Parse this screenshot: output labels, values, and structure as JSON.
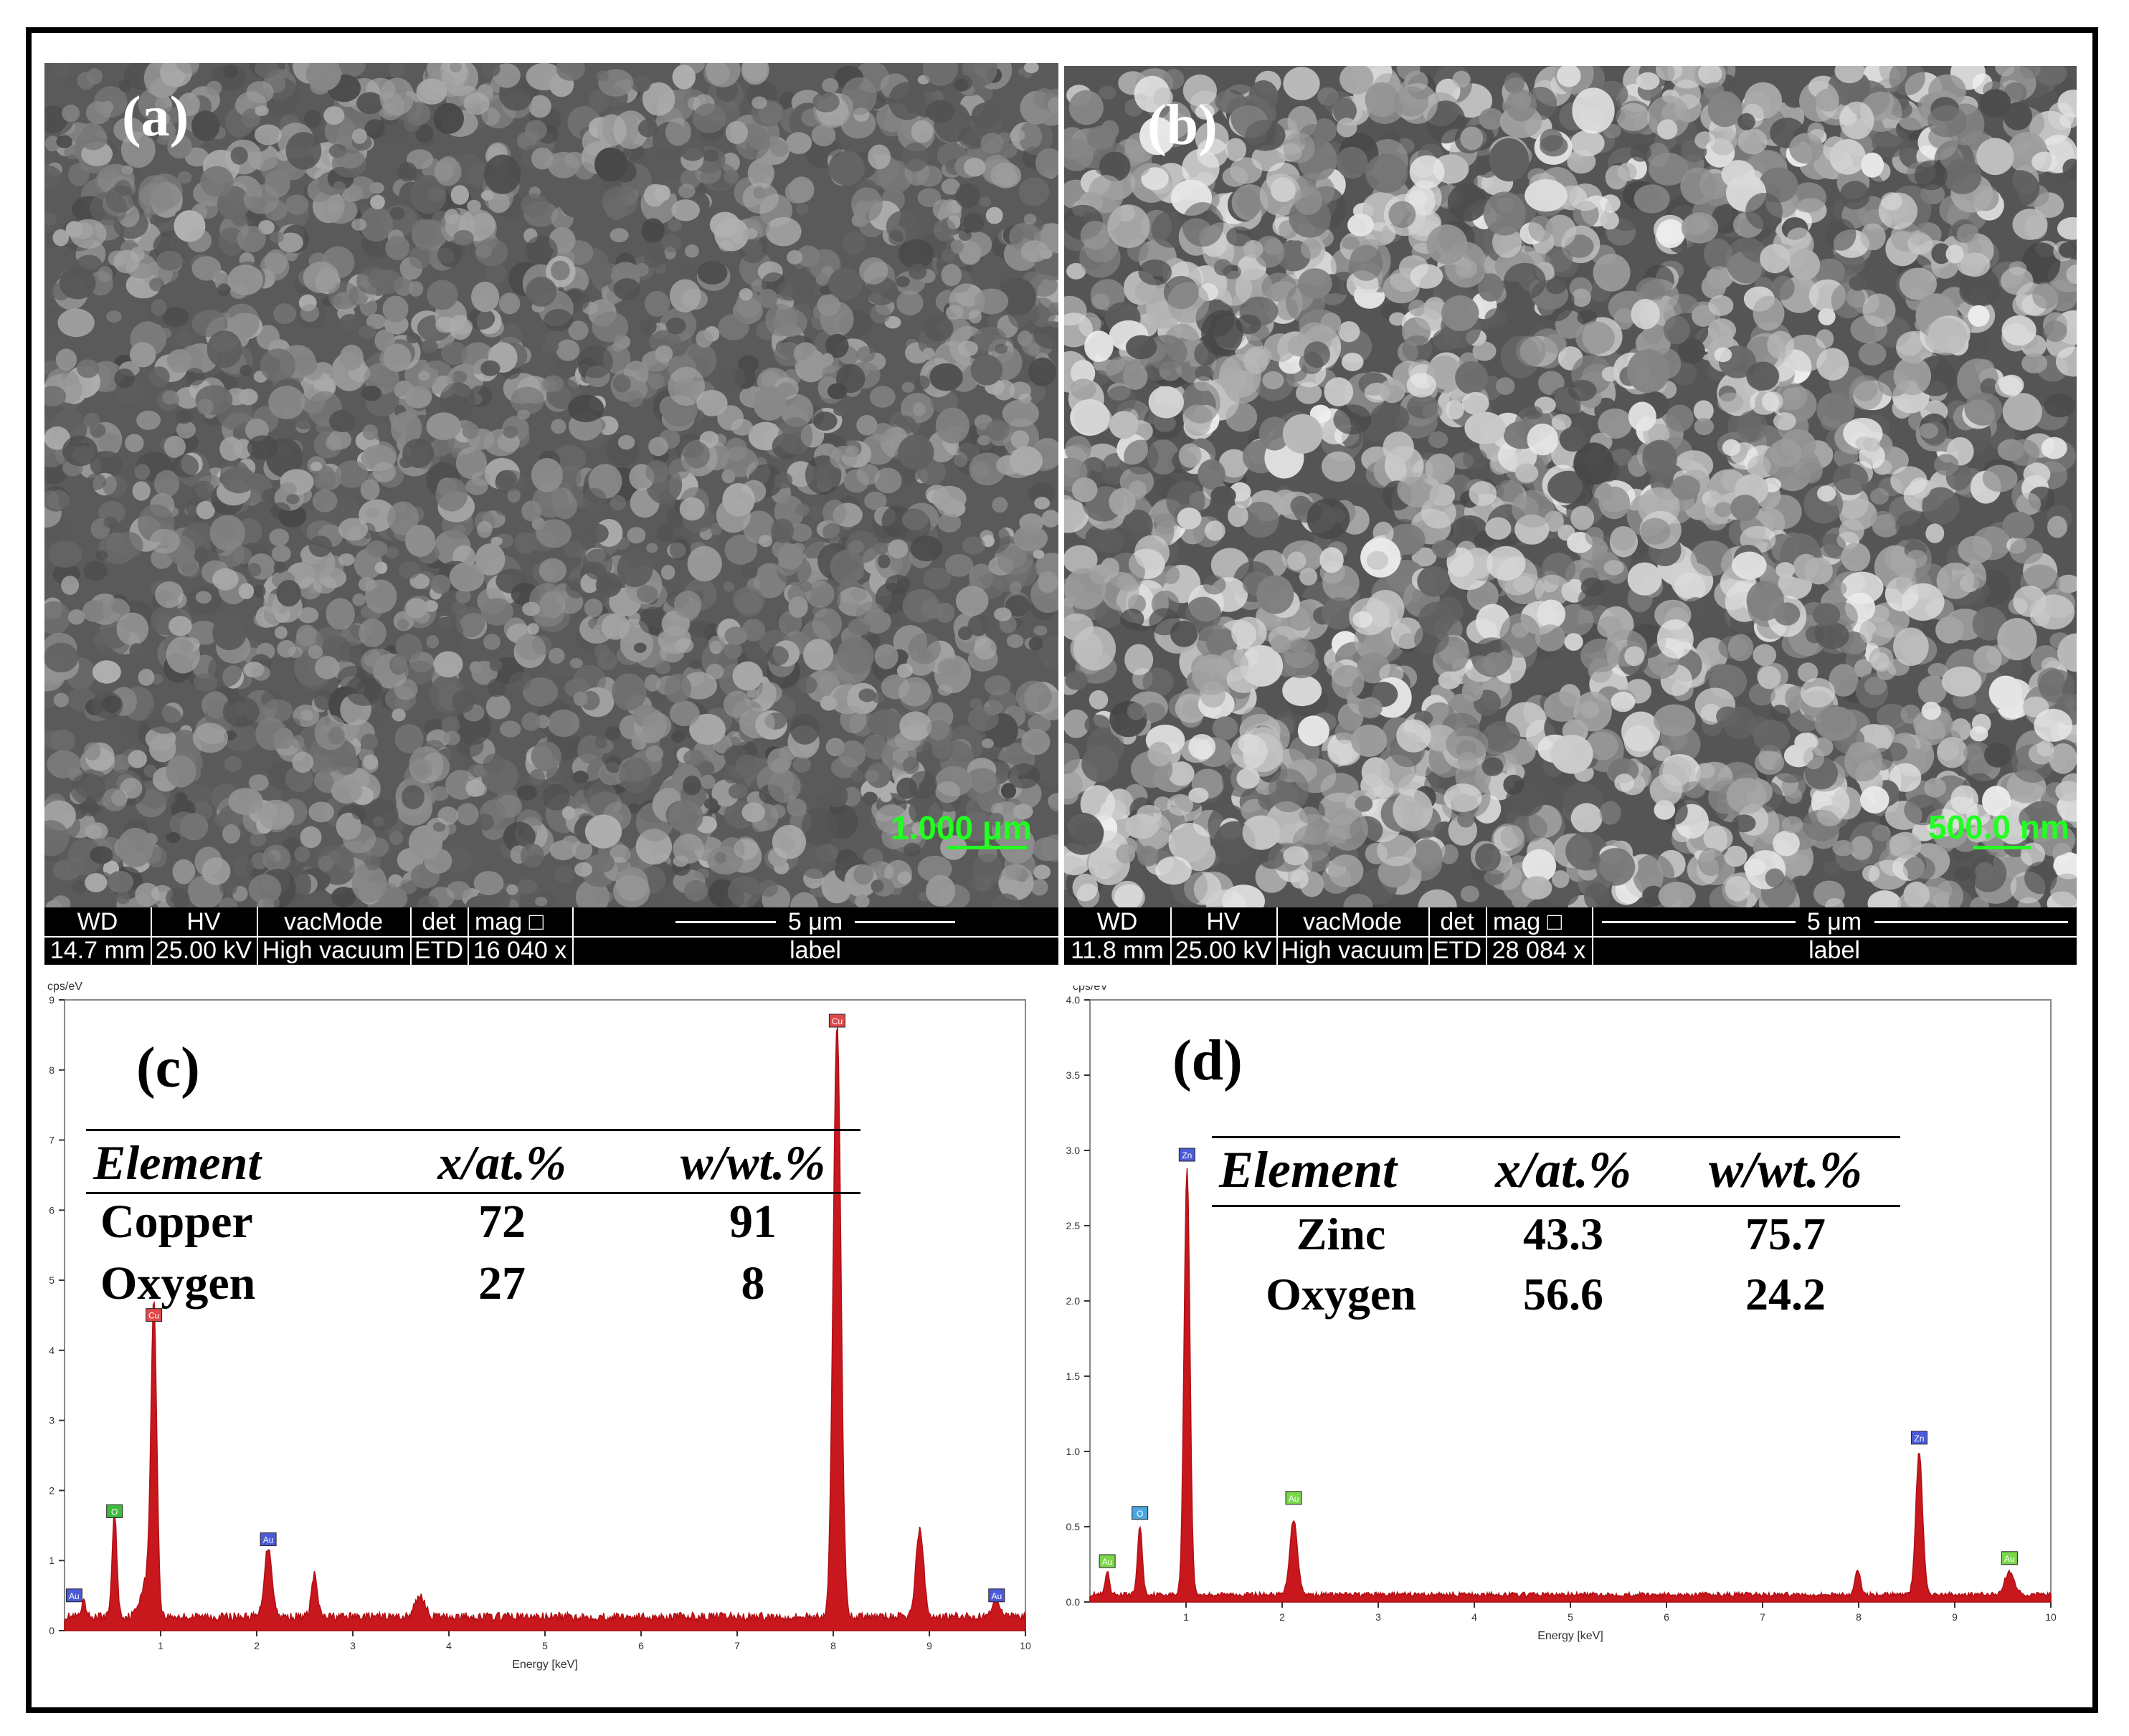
{
  "panels": {
    "a": {
      "letter": "(a)",
      "scale_label": "1.000 μm",
      "databar": {
        "headers": [
          "WD",
          "HV",
          "vacMode",
          "det",
          "mag □",
          "5 μm"
        ],
        "values": [
          "14.7 mm",
          "25.00 kV",
          "High vacuum",
          "ETD",
          "16 040 x",
          "label"
        ]
      }
    },
    "b": {
      "letter": "(b)",
      "scale_label": "500.0 nm",
      "databar": {
        "headers": [
          "WD",
          "HV",
          "vacMode",
          "det",
          "mag □",
          "5 μm"
        ],
        "values": [
          "11.8 mm",
          "25.00 kV",
          "High vacuum",
          "ETD",
          "28 084 x",
          "label"
        ]
      }
    },
    "c": {
      "letter": "(c)",
      "table": {
        "headers": [
          "Element",
          "x/at.%",
          "w/wt.%"
        ],
        "rows": [
          [
            "Copper",
            "72",
            "91"
          ],
          [
            "Oxygen",
            "27",
            "8"
          ]
        ]
      }
    },
    "d": {
      "letter": "(d)",
      "table": {
        "headers": [
          "Element",
          "x/at.%",
          "w/wt.%"
        ],
        "rows": [
          [
            "Zinc",
            "43.3",
            "75.7"
          ],
          [
            "Oxygen",
            "56.6",
            "24.2"
          ]
        ]
      }
    }
  },
  "chart_data": [
    {
      "type": "line",
      "panel": "c",
      "xlabel": "Energy [keV]",
      "ylabel": "cps/eV",
      "xlim": [
        0,
        10
      ],
      "ylim": [
        0,
        9
      ],
      "xticks": [
        "1",
        "2",
        "3",
        "4",
        "5",
        "6",
        "7",
        "8",
        "9",
        "10"
      ],
      "yticks": [
        "0",
        "1",
        "2",
        "3",
        "4",
        "5",
        "6",
        "7",
        "8",
        "9"
      ],
      "baseline": 0.2,
      "peaks": [
        {
          "x": 0.2,
          "y": 0.2,
          "w": 0.02
        },
        {
          "x": 0.52,
          "y": 1.45,
          "w": 0.025
        },
        {
          "x": 0.93,
          "y": 4.3,
          "w": 0.03
        },
        {
          "x": 0.85,
          "y": 0.5,
          "w": 0.06
        },
        {
          "x": 2.12,
          "y": 1.0,
          "w": 0.04
        },
        {
          "x": 2.6,
          "y": 0.6,
          "w": 0.03
        },
        {
          "x": 3.7,
          "y": 0.3,
          "w": 0.05
        },
        {
          "x": 8.04,
          "y": 8.5,
          "w": 0.04
        },
        {
          "x": 8.9,
          "y": 1.25,
          "w": 0.04
        },
        {
          "x": 9.7,
          "y": 0.22,
          "w": 0.05
        }
      ],
      "peak_labels": [
        {
          "x": 0.1,
          "y": 0.35,
          "text": "Au",
          "color": "#4b5bd8"
        },
        {
          "x": 0.52,
          "y": 1.55,
          "text": "O",
          "color": "#3dbb3d"
        },
        {
          "x": 0.93,
          "y": 4.35,
          "text": "Cu",
          "color": "#e04848"
        },
        {
          "x": 2.12,
          "y": 1.15,
          "text": "Au",
          "color": "#4b5bd8"
        },
        {
          "x": 8.04,
          "y": 8.55,
          "text": "Cu",
          "color": "#e04848"
        },
        {
          "x": 9.7,
          "y": 0.35,
          "text": "Au",
          "color": "#4b5bd8"
        }
      ]
    },
    {
      "type": "line",
      "panel": "d",
      "xlabel": "Energy [keV]",
      "ylabel": "cps/eV",
      "xlim": [
        0,
        10
      ],
      "ylim": [
        0,
        4
      ],
      "xticks": [
        "1",
        "2",
        "3",
        "4",
        "5",
        "6",
        "7",
        "8",
        "9",
        "10"
      ],
      "yticks": [
        "0.0",
        "0.5",
        "1.0",
        "1.5",
        "2.0",
        "2.5",
        "3.0",
        "3.5",
        "4.0"
      ],
      "baseline": 0.05,
      "peaks": [
        {
          "x": 0.18,
          "y": 0.15,
          "w": 0.02
        },
        {
          "x": 0.52,
          "y": 0.45,
          "w": 0.025
        },
        {
          "x": 1.01,
          "y": 2.85,
          "w": 0.03
        },
        {
          "x": 2.12,
          "y": 0.5,
          "w": 0.04
        },
        {
          "x": 7.99,
          "y": 0.15,
          "w": 0.03
        },
        {
          "x": 8.63,
          "y": 0.95,
          "w": 0.035
        },
        {
          "x": 9.57,
          "y": 0.15,
          "w": 0.05
        }
      ],
      "peak_labels": [
        {
          "x": 0.18,
          "y": 0.2,
          "text": "Au",
          "color": "#7ad64a"
        },
        {
          "x": 0.52,
          "y": 0.52,
          "text": "O",
          "color": "#4aa6e0"
        },
        {
          "x": 1.01,
          "y": 2.9,
          "text": "Zn",
          "color": "#4b5bd8"
        },
        {
          "x": 2.12,
          "y": 0.62,
          "text": "Au",
          "color": "#7ad64a"
        },
        {
          "x": 8.63,
          "y": 1.02,
          "text": "Zn",
          "color": "#4b5bd8"
        },
        {
          "x": 9.57,
          "y": 0.22,
          "text": "Au",
          "color": "#7ad64a"
        }
      ]
    }
  ]
}
